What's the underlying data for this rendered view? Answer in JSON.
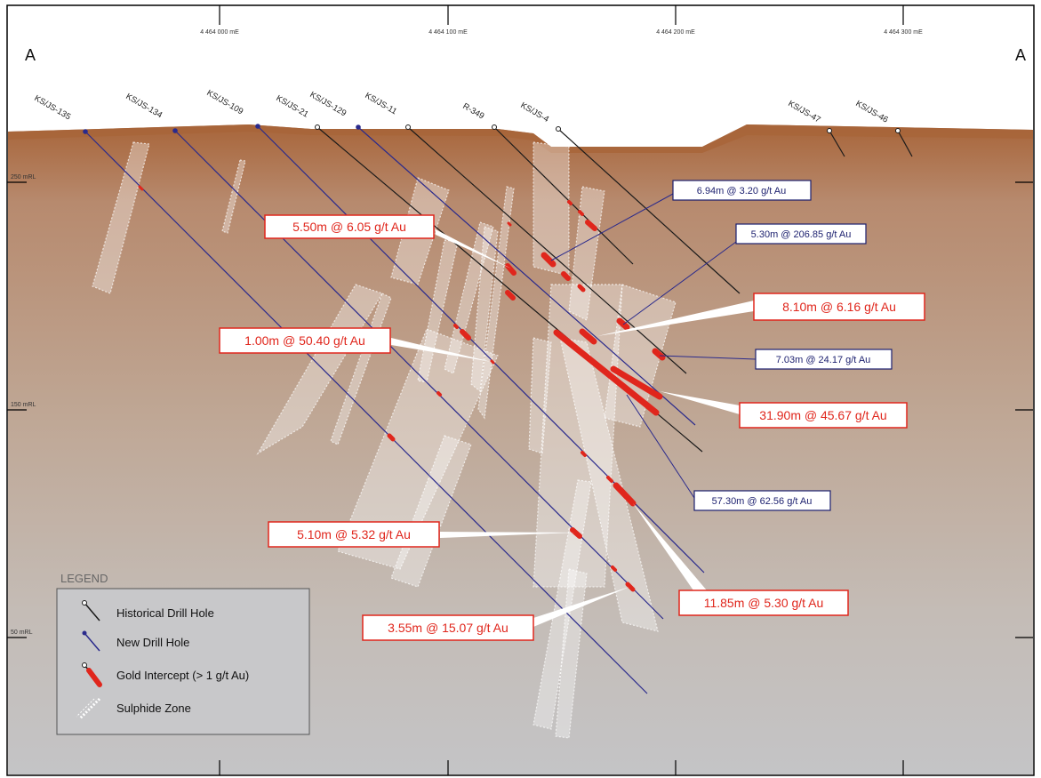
{
  "section": {
    "left_label": "A",
    "right_label": "A"
  },
  "eastings": [
    "4 464 000 mE",
    "4 464 100 mE",
    "4 464 200 mE",
    "4 464 300 mE"
  ],
  "elevations": [
    "250 mRL",
    "150 mRL",
    "50 mRL"
  ],
  "drill_holes": [
    {
      "name": "KS/JS-135",
      "type": "new"
    },
    {
      "name": "KS/JS-134",
      "type": "new"
    },
    {
      "name": "KS/JS-109",
      "type": "new"
    },
    {
      "name": "KS/JS-21",
      "type": "historical"
    },
    {
      "name": "KS/JS-129",
      "type": "new"
    },
    {
      "name": "KS/JS-11",
      "type": "historical"
    },
    {
      "name": "R-349",
      "type": "historical"
    },
    {
      "name": "KS/JS-4",
      "type": "historical"
    },
    {
      "name": "KS/JS-47",
      "type": "historical"
    },
    {
      "name": "KS/JS-46",
      "type": "historical"
    }
  ],
  "intercepts": [
    {
      "text": "5.50m @ 6.05 g/t Au",
      "style": "red"
    },
    {
      "text": "6.94m @ 3.20 g/t Au",
      "style": "blue"
    },
    {
      "text": "5.30m @ 206.85 g/t Au",
      "style": "blue"
    },
    {
      "text": "8.10m @ 6.16 g/t Au",
      "style": "red"
    },
    {
      "text": "1.00m @ 50.40 g/t Au",
      "style": "red"
    },
    {
      "text": "7.03m @ 24.17 g/t Au",
      "style": "blue"
    },
    {
      "text": "31.90m @ 45.67 g/t Au",
      "style": "red"
    },
    {
      "text": "57.30m @ 62.56 g/t Au",
      "style": "blue"
    },
    {
      "text": "5.10m @ 5.32 g/t Au",
      "style": "red"
    },
    {
      "text": "11.85m @ 5.30 g/t Au",
      "style": "red"
    },
    {
      "text": "3.55m @ 15.07 g/t Au",
      "style": "red"
    }
  ],
  "legend": {
    "title": "LEGEND",
    "items": [
      {
        "label": "Historical Drill Hole",
        "icon": "historical-drill-hole-icon"
      },
      {
        "label": "New Drill Hole",
        "icon": "new-drill-hole-icon"
      },
      {
        "label": "Gold Intercept (> 1 g/t Au)",
        "icon": "gold-intercept-icon"
      },
      {
        "label": "Sulphide Zone",
        "icon": "sulphide-zone-icon"
      }
    ]
  },
  "colors": {
    "historical": "#1a1a1a",
    "new": "#2a2a8c",
    "intercept": "#e0261c",
    "ground_top": "#a8653a",
    "ground_bottom": "#c4c4c6"
  }
}
